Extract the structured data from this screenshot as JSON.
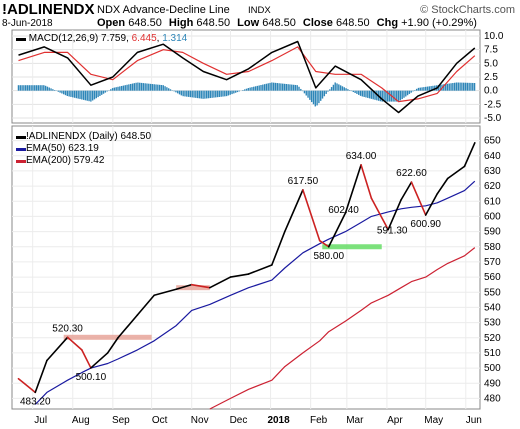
{
  "header": {
    "symbol": "!ADLINENDX",
    "description": "NDX Advance-Decline Line",
    "exchange": "INDX",
    "date": "8-Jun-2018",
    "open_label": "Open",
    "open": "648.50",
    "high_label": "High",
    "high": "648.50",
    "low_label": "Low",
    "low": "648.50",
    "close_label": "Close",
    "close": "648.50",
    "chg_label": "Chg",
    "chg": "+1.90 (+0.29%)",
    "watermark": "© StockCharts.com"
  },
  "macd_panel": {
    "label": "MACD(12,26,9)",
    "macd": "7.759",
    "signal": "6.445",
    "hist": "1.314",
    "colors": {
      "macd": "#000000",
      "signal": "#e03030",
      "hist": "#2e86b8"
    }
  },
  "price_panel": {
    "label": "!ADLINENDX (Daily) 648.50",
    "ema50_label": "EMA(50) 623.19",
    "ema200_label": "EMA(200) 579.42",
    "colors": {
      "price": "#000000",
      "price_down": "#cc2222",
      "ema50": "#1a1aa0",
      "ema200": "#cc2233",
      "support_band": "#e8a59a",
      "green_band": "#66dd66"
    }
  },
  "chart_data": [
    {
      "type": "line",
      "title": "MACD(12,26,9)",
      "ylim": [
        -5,
        10
      ],
      "yticks": [
        "10.0",
        "7.5",
        "5.0",
        "2.5",
        "0.0",
        "-2.5",
        "-5.0"
      ],
      "x_dates": [
        "2017-06-20",
        "2017-07-10",
        "2017-07-28",
        "2017-08-15",
        "2017-09-01",
        "2017-09-20",
        "2017-10-10",
        "2017-10-25",
        "2017-11-10",
        "2017-11-28",
        "2017-12-15",
        "2018-01-02",
        "2018-01-22",
        "2018-02-05",
        "2018-02-20",
        "2018-03-12",
        "2018-03-28",
        "2018-04-10",
        "2018-04-25",
        "2018-05-10",
        "2018-05-25",
        "2018-06-08"
      ],
      "series": [
        {
          "name": "MACD",
          "values": [
            6.5,
            8.0,
            6.0,
            1.0,
            2.5,
            7.0,
            8.5,
            6.0,
            3.5,
            2.0,
            4.0,
            7.0,
            9.0,
            0.5,
            4.5,
            2.0,
            -1.5,
            -4.0,
            -1.0,
            0.5,
            5.0,
            7.8
          ]
        },
        {
          "name": "Signal",
          "values": [
            5.5,
            7.0,
            7.0,
            3.0,
            2.0,
            5.5,
            7.5,
            7.0,
            5.0,
            3.0,
            3.5,
            5.5,
            8.0,
            3.5,
            3.0,
            3.0,
            0.5,
            -2.0,
            -1.5,
            -0.5,
            3.5,
            6.4
          ]
        }
      ]
    },
    {
      "type": "line",
      "title": "!ADLINENDX (Daily) 648.50",
      "ylim": [
        475,
        655
      ],
      "yticks": [
        480,
        490,
        500,
        510,
        520,
        530,
        540,
        550,
        560,
        570,
        580,
        590,
        600,
        610,
        620,
        630,
        640,
        650
      ],
      "xticks": [
        "Jul",
        "Aug",
        "Sep",
        "Oct",
        "Nov",
        "Dec",
        "2018",
        "Feb",
        "Mar",
        "Apr",
        "May",
        "Jun"
      ],
      "x_dates": [
        "2017-06-20",
        "2017-07-03",
        "2017-07-12",
        "2017-07-28",
        "2017-08-08",
        "2017-08-15",
        "2017-08-28",
        "2017-09-05",
        "2017-09-20",
        "2017-10-03",
        "2017-10-20",
        "2017-11-01",
        "2017-11-15",
        "2017-12-01",
        "2017-12-15",
        "2018-01-02",
        "2018-01-12",
        "2018-01-26",
        "2018-02-08",
        "2018-02-15",
        "2018-02-28",
        "2018-03-12",
        "2018-03-20",
        "2018-04-02",
        "2018-04-12",
        "2018-04-20",
        "2018-05-01",
        "2018-05-10",
        "2018-05-18",
        "2018-05-31",
        "2018-06-08"
      ],
      "series": [
        {
          "name": "!ADLINENDX",
          "values": [
            493,
            484,
            505,
            520.3,
            512,
            500.1,
            510,
            520,
            535,
            548,
            552,
            555,
            553,
            560,
            562,
            568,
            590,
            617.5,
            584,
            580,
            602.4,
            634,
            612,
            591.3,
            611,
            622.6,
            600.9,
            615,
            625,
            633,
            648.5
          ]
        },
        {
          "name": "EMA(50)",
          "values": [
            null,
            476,
            484,
            492,
            497,
            500,
            503,
            506,
            512,
            518,
            528,
            538,
            542,
            548,
            553,
            558,
            566,
            576,
            582,
            585,
            590,
            596,
            600,
            603,
            605,
            606,
            607,
            609,
            612,
            617,
            623.19
          ]
        },
        {
          "name": "EMA(200)",
          "values": [
            null,
            null,
            null,
            null,
            null,
            null,
            null,
            null,
            null,
            null,
            null,
            null,
            473,
            480,
            486,
            492,
            501,
            510,
            518,
            524,
            531,
            538,
            543,
            548,
            553,
            557,
            560,
            565,
            569,
            574,
            579.42
          ]
        }
      ],
      "annotations": [
        "520.30",
        "500.10",
        "483.20",
        "617.50",
        "580.00",
        "602.40",
        "634.00",
        "591.30",
        "622.60",
        "600.90"
      ]
    }
  ]
}
